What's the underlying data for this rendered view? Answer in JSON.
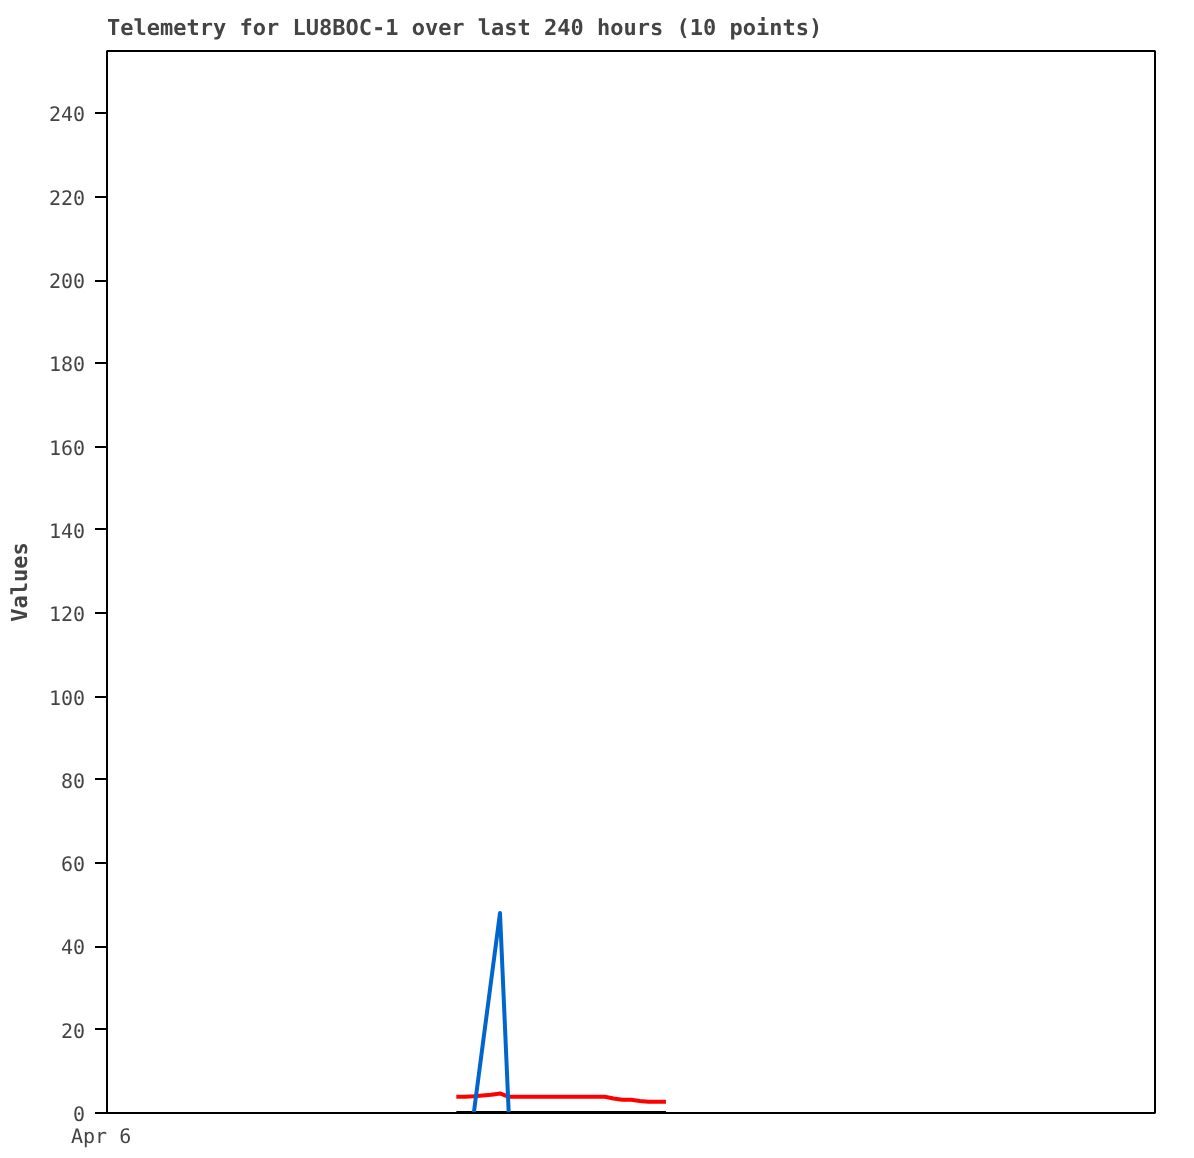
{
  "chart_data": {
    "type": "line",
    "title": "Telemetry for LU8BOC-1 over last 240 hours (10 points)",
    "ylabel": "Values",
    "annotations": [
      "Apr 6"
    ],
    "categories": [
      null,
      null,
      null,
      null,
      null,
      null,
      null,
      null,
      null,
      null,
      null,
      null,
      null,
      null,
      null,
      null,
      null,
      null,
      null,
      null,
      null,
      null,
      null,
      null,
      null,
      null,
      null,
      null,
      null,
      null,
      null,
      null,
      null,
      null,
      null,
      null,
      null,
      null,
      null,
      null,
      null,
      null,
      null,
      null,
      null,
      null,
      null,
      null,
      null,
      null,
      null,
      null,
      null,
      null,
      null,
      null,
      null,
      null,
      null,
      null,
      null,
      null,
      null,
      null,
      null,
      null,
      null,
      null,
      null,
      null,
      null,
      null,
      null,
      null,
      null,
      null,
      null,
      null,
      null,
      null,
      null,
      null,
      null,
      null,
      null,
      null,
      null,
      null,
      null,
      null,
      null,
      null,
      null,
      null,
      null,
      null,
      null,
      null,
      null,
      null,
      null,
      null,
      null,
      null,
      null,
      null,
      null,
      null,
      null,
      null,
      null,
      null,
      null,
      null,
      null,
      null,
      null,
      null,
      null,
      null,
      null
    ],
    "ylim": [
      0,
      255
    ],
    "yticks": [
      0,
      20,
      40,
      60,
      80,
      100,
      120,
      140,
      160,
      180,
      200,
      220,
      240
    ],
    "grid": false,
    "marker": "none",
    "line_style": "solid",
    "series": [
      {
        "color": "#000000",
        "values": [
          null,
          null,
          null,
          null,
          null,
          null,
          null,
          null,
          null,
          null,
          null,
          null,
          null,
          null,
          null,
          null,
          null,
          null,
          null,
          null,
          null,
          null,
          null,
          null,
          null,
          null,
          null,
          null,
          null,
          null,
          null,
          null,
          null,
          null,
          null,
          null,
          null,
          null,
          null,
          null,
          0,
          0,
          0,
          0,
          0,
          0,
          0,
          0,
          0,
          0,
          0,
          0,
          0,
          0,
          0,
          0,
          0,
          0,
          0,
          0,
          0,
          0,
          0,
          0,
          0,
          null,
          null,
          null,
          null,
          null,
          null,
          null,
          null,
          null,
          null,
          null,
          null,
          null,
          null,
          null,
          null,
          null,
          null,
          null,
          null,
          null,
          null,
          null,
          null,
          null,
          null,
          null,
          null,
          null,
          null,
          null,
          null,
          null,
          null,
          null,
          null,
          null,
          null,
          null,
          null,
          null,
          null,
          null,
          null,
          null,
          null,
          null,
          null,
          null,
          null,
          null,
          null,
          null,
          null,
          null,
          null
        ]
      },
      {
        "color": "#ff0000",
        "values": [
          null,
          null,
          null,
          null,
          null,
          null,
          null,
          null,
          null,
          null,
          null,
          null,
          null,
          null,
          null,
          null,
          null,
          null,
          null,
          null,
          null,
          null,
          null,
          null,
          null,
          null,
          null,
          null,
          null,
          null,
          null,
          null,
          null,
          null,
          null,
          null,
          null,
          null,
          null,
          null,
          3.9,
          3.9,
          4.0,
          4.2,
          4.4,
          4.7,
          3.9,
          3.9,
          3.9,
          3.9,
          3.9,
          3.9,
          3.9,
          3.9,
          3.9,
          3.9,
          3.9,
          3.9,
          3.5,
          3.2,
          3.2,
          2.9,
          2.7,
          2.7,
          2.7,
          null,
          null,
          null,
          null,
          null,
          null,
          null,
          null,
          null,
          null,
          null,
          null,
          null,
          null,
          null,
          null,
          null,
          null,
          null,
          null,
          null,
          null,
          null,
          null,
          null,
          null,
          null,
          null,
          null,
          null,
          null,
          null,
          null,
          null,
          null,
          null,
          null,
          null,
          null,
          null,
          null,
          null,
          null,
          null,
          null,
          null,
          null,
          null,
          null,
          null,
          null,
          null,
          null,
          null,
          null,
          null
        ]
      },
      {
        "color": "#0066cc",
        "values": [
          null,
          null,
          null,
          null,
          null,
          null,
          null,
          null,
          null,
          null,
          null,
          null,
          null,
          null,
          null,
          null,
          null,
          null,
          null,
          null,
          null,
          null,
          null,
          null,
          null,
          null,
          null,
          null,
          null,
          null,
          null,
          null,
          null,
          null,
          null,
          null,
          null,
          null,
          null,
          null,
          null,
          null,
          0,
          16,
          32,
          48,
          0,
          null,
          null,
          null,
          null,
          null,
          null,
          null,
          null,
          null,
          null,
          null,
          null,
          null,
          null,
          null,
          null,
          null,
          null,
          null,
          null,
          null,
          null,
          null,
          null,
          null,
          null,
          null,
          null,
          null,
          null,
          null,
          null,
          null,
          null,
          null,
          null,
          null,
          null,
          null,
          null,
          null,
          null,
          null,
          null,
          null,
          null,
          null,
          null,
          null,
          null,
          null,
          null,
          null,
          null,
          null,
          null,
          null,
          null,
          null,
          null,
          null,
          null,
          null,
          null,
          null,
          null,
          null,
          null,
          null,
          null,
          null,
          null,
          null,
          null
        ]
      }
    ]
  }
}
